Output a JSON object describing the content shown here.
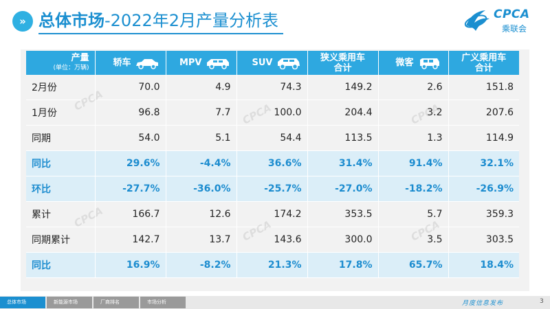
{
  "header": {
    "title_bold": "总体市场",
    "title_rest": "-2022年2月产量分析表",
    "chevron": "»",
    "logo_text": "CPCA",
    "logo_sub": "乘联会"
  },
  "table": {
    "unit_header": "产量",
    "unit_note": "(单位：万辆)",
    "columns": [
      {
        "label": "轿车",
        "icon": "sedan-icon"
      },
      {
        "label": "MPV",
        "icon": "mpv-icon"
      },
      {
        "label": "SUV",
        "icon": "suv-icon"
      },
      {
        "label": "狭义乘用车合计",
        "line1": "狭义乘用车",
        "line2": "合计"
      },
      {
        "label": "微客",
        "icon": "minivan-icon"
      },
      {
        "label": "广义乘用车合计",
        "line1": "广义乘用车",
        "line2": "合计"
      }
    ],
    "rows": [
      {
        "label": "2月份",
        "values": [
          "70.0",
          "4.9",
          "74.3",
          "149.2",
          "2.6",
          "151.8"
        ],
        "highlight": false
      },
      {
        "label": "1月份",
        "values": [
          "96.8",
          "7.7",
          "100.0",
          "204.4",
          "3.2",
          "207.6"
        ],
        "highlight": false
      },
      {
        "label": "同期",
        "values": [
          "54.0",
          "5.1",
          "54.4",
          "113.5",
          "1.3",
          "114.9"
        ],
        "highlight": false
      },
      {
        "label": "同比",
        "values": [
          "29.6%",
          "-4.4%",
          "36.6%",
          "31.4%",
          "91.4%",
          "32.1%"
        ],
        "highlight": true
      },
      {
        "label": "环比",
        "values": [
          "-27.7%",
          "-36.0%",
          "-25.7%",
          "-27.0%",
          "-18.2%",
          "-26.9%"
        ],
        "highlight": true
      },
      {
        "label": "累计",
        "values": [
          "166.7",
          "12.6",
          "174.2",
          "353.5",
          "5.7",
          "359.3"
        ],
        "highlight": false
      },
      {
        "label": "同期累计",
        "values": [
          "142.7",
          "13.7",
          "143.6",
          "300.0",
          "3.5",
          "303.5"
        ],
        "highlight": false
      },
      {
        "label": "同比",
        "values": [
          "16.9%",
          "-8.2%",
          "21.3%",
          "17.8%",
          "65.7%",
          "18.4%"
        ],
        "highlight": true
      }
    ]
  },
  "footer": {
    "nav": [
      "总体市场",
      "新能源市场",
      "厂商排名",
      "市场分析"
    ],
    "right_text": "月度信息发布",
    "page_number": "3"
  },
  "colors": {
    "accent": "#1b8fd0",
    "header_bg": "#2ea8e0",
    "row_bg": "#f2f2f2",
    "highlight_bg": "#dbeef8"
  }
}
